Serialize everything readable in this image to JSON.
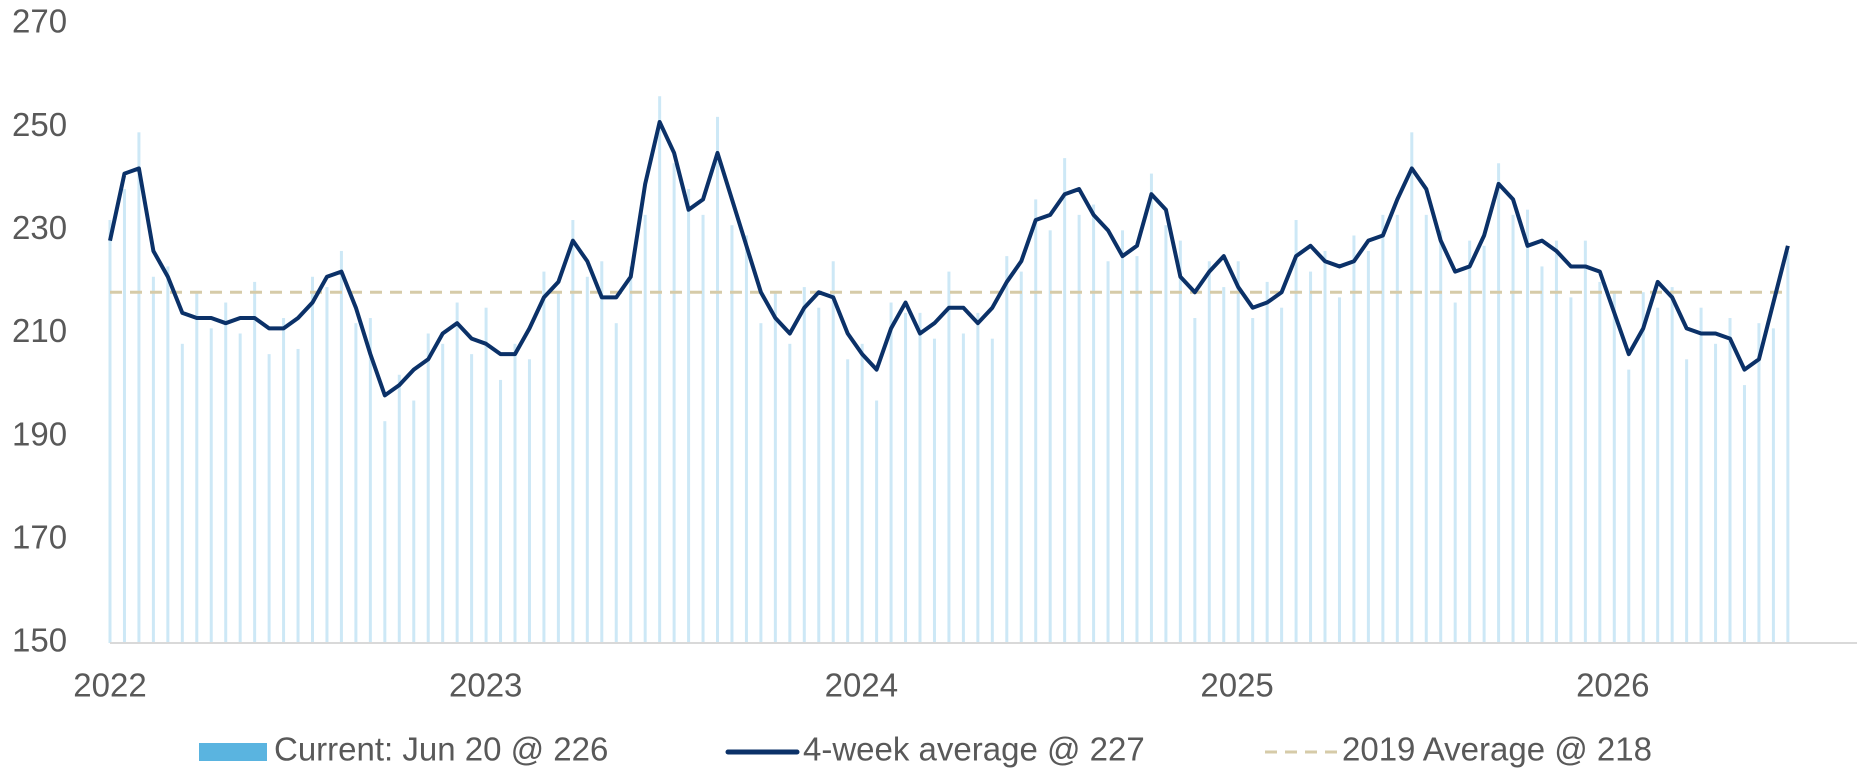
{
  "chart_data": {
    "type": "bar_line",
    "x": [
      2022,
      2022.0385,
      2022.077,
      2022.1155,
      2022.154,
      2022.1925,
      2022.231,
      2022.2695,
      2022.308,
      2022.3465,
      2022.385,
      2022.4235,
      2022.462,
      2022.5005,
      2022.539,
      2022.5775,
      2022.616,
      2022.6545,
      2022.693,
      2022.7315,
      2022.77,
      2022.8085,
      2022.847,
      2022.8855,
      2022.924,
      2022.9625,
      2023.001,
      2023.0395,
      2023.078,
      2023.1165,
      2023.155,
      2023.1935,
      2023.232,
      2023.2705,
      2023.309,
      2023.3475,
      2023.386,
      2023.4245,
      2023.463,
      2023.5015,
      2023.54,
      2023.5785,
      2023.617,
      2023.6555,
      2023.694,
      2023.7325,
      2023.771,
      2023.8095,
      2023.848,
      2023.8865,
      2023.925,
      2023.9635,
      2024.002,
      2024.0405,
      2024.079,
      2024.1175,
      2024.156,
      2024.1945,
      2024.233,
      2024.2715,
      2024.31,
      2024.3485,
      2024.387,
      2024.4255,
      2024.464,
      2024.5025,
      2024.541,
      2024.5795,
      2024.618,
      2024.6565,
      2024.695,
      2024.7335,
      2024.772,
      2024.8105,
      2024.849,
      2024.8875,
      2024.926,
      2024.9645,
      2025.003,
      2025.0415,
      2025.08,
      2025.1185,
      2025.157,
      2025.1955,
      2025.234,
      2025.2725,
      2025.311,
      2025.3495,
      2025.388,
      2025.4265,
      2025.465,
      2025.5035,
      2025.542,
      2025.5805,
      2025.619,
      2025.6575,
      2025.696,
      2025.7345,
      2025.773,
      2025.8115,
      2025.85,
      2025.8885,
      2025.927,
      2025.9655,
      2026.004,
      2026.0425,
      2026.081,
      2026.1195,
      2026.158,
      2026.1965,
      2026.235,
      2026.2735,
      2026.312,
      2026.3505,
      2026.389,
      2026.4275,
      2026.466
    ],
    "series": [
      {
        "name": "Current: Jun 20 @ 226",
        "type": "bar",
        "color": "#5ab4e0",
        "values": [
          232,
          238,
          249,
          221,
          223,
          208,
          218,
          211,
          216,
          210,
          220,
          206,
          213,
          207,
          221,
          219,
          226,
          212,
          213,
          193,
          202,
          197,
          210,
          208,
          216,
          206,
          215,
          201,
          208,
          205,
          222,
          218,
          232,
          221,
          224,
          212,
          223,
          233,
          256,
          243,
          238,
          233,
          252,
          231,
          229,
          212,
          218,
          208,
          219,
          215,
          224,
          205,
          208,
          197,
          216,
          214,
          214,
          209,
          222,
          210,
          214,
          209,
          225,
          222,
          236,
          230,
          244,
          233,
          235,
          224,
          230,
          225,
          241,
          231,
          228,
          213,
          224,
          219,
          224,
          213,
          220,
          215,
          232,
          222,
          226,
          217,
          229,
          226,
          233,
          233,
          249,
          233,
          230,
          216,
          228,
          227,
          243,
          233,
          234,
          223,
          228,
          217,
          228,
          220,
          218,
          203,
          218,
          215,
          219,
          205,
          215,
          208,
          213,
          200,
          212,
          211,
          226
        ]
      },
      {
        "name": "4-week average @ 227",
        "type": "line",
        "color": "#0b3168",
        "values": [
          228,
          241,
          242,
          226,
          221,
          214,
          213,
          213,
          212,
          213,
          213,
          211,
          211,
          213,
          216,
          221,
          222,
          215,
          206,
          198,
          200,
          203,
          205,
          210,
          212,
          209,
          208,
          206,
          206,
          211,
          217,
          220,
          228,
          224,
          217,
          217,
          221,
          239,
          251,
          245,
          234,
          236,
          245,
          236,
          227,
          218,
          213,
          210,
          215,
          218,
          217,
          210,
          206,
          203,
          211,
          216,
          210,
          212,
          215,
          215,
          212,
          215,
          220,
          224,
          232,
          233,
          237,
          238,
          233,
          230,
          225,
          227,
          237,
          234,
          221,
          218,
          222,
          225,
          219,
          215,
          216,
          218,
          225,
          227,
          224,
          223,
          224,
          228,
          229,
          236,
          242,
          238,
          228,
          222,
          223,
          229,
          239,
          236,
          227,
          228,
          226,
          223,
          223,
          222,
          214,
          206,
          211,
          220,
          217,
          211,
          210,
          210,
          209,
          203,
          205,
          216,
          227
        ]
      }
    ],
    "reference": {
      "name": "2019 Average @ 218",
      "color": "#d6cba8",
      "value": 218
    },
    "xlim": [
      2022,
      2026.65
    ],
    "xticks": [
      2022,
      2023,
      2024,
      2025,
      2026
    ],
    "ylim": [
      150,
      270
    ],
    "yticks": [
      150,
      170,
      190,
      210,
      230,
      250,
      270
    ],
    "grid": false
  }
}
